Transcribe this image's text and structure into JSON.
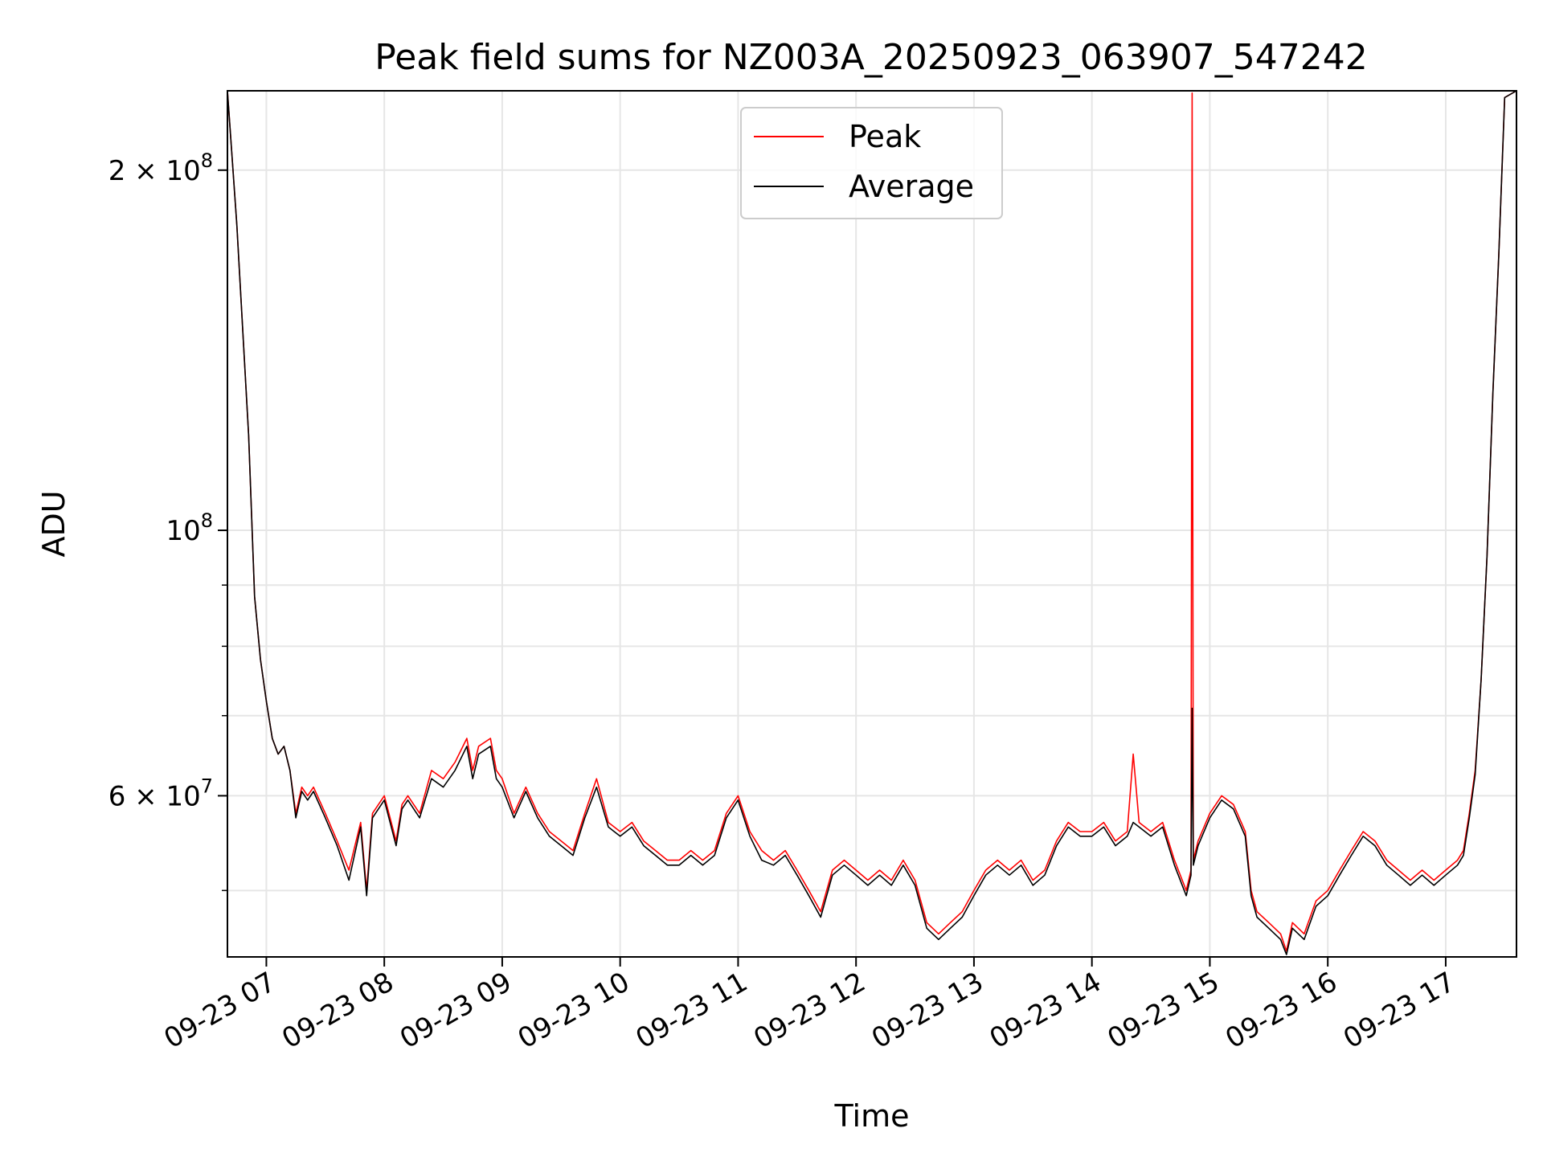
{
  "chart_data": {
    "type": "line",
    "title": "Peak field sums for NZ003A_20250923_063907_547242",
    "xlabel": "Time",
    "ylabel": "ADU",
    "yscale": "log",
    "ylim": [
      44000000,
      233000000
    ],
    "xlim_hours": [
      6.67,
      17.6
    ],
    "grid": true,
    "legend_position": "upper-center",
    "x_ticks": [
      {
        "hour": 7,
        "label": "09-23 07"
      },
      {
        "hour": 8,
        "label": "09-23 08"
      },
      {
        "hour": 9,
        "label": "09-23 09"
      },
      {
        "hour": 10,
        "label": "09-23 10"
      },
      {
        "hour": 11,
        "label": "09-23 11"
      },
      {
        "hour": 12,
        "label": "09-23 12"
      },
      {
        "hour": 13,
        "label": "09-23 13"
      },
      {
        "hour": 14,
        "label": "09-23 14"
      },
      {
        "hour": 15,
        "label": "09-23 15"
      },
      {
        "hour": 16,
        "label": "09-23 16"
      },
      {
        "hour": 17,
        "label": "09-23 17"
      }
    ],
    "y_major_ticks": [
      {
        "value": 100000000,
        "base": "10",
        "exp": "8",
        "prefix": ""
      },
      {
        "value": 60000000,
        "base": "6 × 10",
        "exp": "7",
        "prefix": ""
      },
      {
        "value": 200000000,
        "base": "2 × 10",
        "exp": "8",
        "prefix": ""
      }
    ],
    "y_minor_ticks": [
      50000000,
      70000000,
      80000000,
      90000000
    ],
    "series": [
      {
        "name": "Peak",
        "color": "#ff0000",
        "x_hours": [
          6.67,
          6.75,
          6.85,
          6.9,
          6.95,
          7.0,
          7.05,
          7.1,
          7.15,
          7.2,
          7.25,
          7.3,
          7.35,
          7.4,
          7.5,
          7.6,
          7.7,
          7.8,
          7.85,
          7.9,
          8.0,
          8.1,
          8.15,
          8.2,
          8.3,
          8.4,
          8.5,
          8.6,
          8.7,
          8.75,
          8.8,
          8.9,
          8.95,
          9.0,
          9.1,
          9.2,
          9.3,
          9.4,
          9.5,
          9.6,
          9.7,
          9.8,
          9.9,
          10.0,
          10.1,
          10.2,
          10.3,
          10.4,
          10.5,
          10.6,
          10.7,
          10.8,
          10.9,
          11.0,
          11.1,
          11.2,
          11.3,
          11.4,
          11.5,
          11.6,
          11.7,
          11.8,
          11.9,
          12.0,
          12.1,
          12.2,
          12.3,
          12.4,
          12.5,
          12.6,
          12.7,
          12.8,
          12.9,
          13.0,
          13.1,
          13.2,
          13.3,
          13.4,
          13.5,
          13.6,
          13.7,
          13.8,
          13.9,
          14.0,
          14.1,
          14.2,
          14.3,
          14.35,
          14.4,
          14.5,
          14.6,
          14.7,
          14.8,
          14.84,
          14.85,
          14.86,
          14.9,
          15.0,
          15.1,
          15.2,
          15.3,
          15.35,
          15.4,
          15.5,
          15.6,
          15.65,
          15.7,
          15.8,
          15.9,
          16.0,
          16.1,
          16.2,
          16.3,
          16.4,
          16.5,
          16.6,
          16.7,
          16.8,
          16.9,
          17.0,
          17.1,
          17.15,
          17.2,
          17.25,
          17.3,
          17.35,
          17.4,
          17.45,
          17.5,
          17.6
        ],
        "values": [
          233000000,
          180000000,
          120000000,
          88000000,
          78000000,
          72000000,
          67000000,
          65000000,
          66000000,
          63000000,
          58000000,
          61000000,
          60000000,
          61000000,
          58000000,
          55000000,
          52000000,
          57000000,
          50000000,
          58000000,
          60000000,
          55000000,
          59000000,
          60000000,
          58000000,
          63000000,
          62000000,
          64000000,
          67000000,
          63000000,
          66000000,
          67000000,
          63000000,
          62000000,
          58000000,
          61000000,
          58000000,
          56000000,
          55000000,
          54000000,
          58000000,
          62000000,
          57000000,
          56000000,
          57000000,
          55000000,
          54000000,
          53000000,
          53000000,
          54000000,
          53000000,
          54000000,
          58000000,
          60000000,
          56000000,
          54000000,
          53000000,
          54000000,
          52000000,
          50000000,
          48000000,
          52000000,
          53000000,
          52000000,
          51000000,
          52000000,
          51000000,
          53000000,
          51000000,
          47000000,
          46000000,
          47000000,
          48000000,
          50000000,
          52000000,
          53000000,
          52000000,
          53000000,
          51000000,
          52000000,
          55000000,
          57000000,
          56000000,
          56000000,
          57000000,
          55000000,
          56000000,
          65000000,
          57000000,
          56000000,
          57000000,
          53000000,
          50000000,
          52000000,
          232000000,
          53000000,
          55000000,
          58000000,
          60000000,
          59000000,
          56000000,
          50000000,
          48000000,
          47000000,
          46000000,
          44500000,
          47000000,
          46000000,
          49000000,
          50000000,
          52000000,
          54000000,
          56000000,
          55000000,
          53000000,
          52000000,
          51000000,
          52000000,
          51000000,
          52000000,
          53000000,
          54000000,
          58000000,
          63000000,
          75000000,
          95000000,
          130000000,
          170000000,
          230000000,
          233000000
        ]
      },
      {
        "name": "Average",
        "color": "#000000",
        "x_hours": [
          6.67,
          6.75,
          6.85,
          6.9,
          6.95,
          7.0,
          7.05,
          7.1,
          7.15,
          7.2,
          7.25,
          7.3,
          7.35,
          7.4,
          7.5,
          7.6,
          7.7,
          7.8,
          7.85,
          7.9,
          8.0,
          8.1,
          8.15,
          8.2,
          8.3,
          8.4,
          8.5,
          8.6,
          8.7,
          8.75,
          8.8,
          8.9,
          8.95,
          9.0,
          9.1,
          9.2,
          9.3,
          9.4,
          9.5,
          9.6,
          9.7,
          9.8,
          9.9,
          10.0,
          10.1,
          10.2,
          10.3,
          10.4,
          10.5,
          10.6,
          10.7,
          10.8,
          10.9,
          11.0,
          11.1,
          11.2,
          11.3,
          11.4,
          11.5,
          11.6,
          11.7,
          11.8,
          11.9,
          12.0,
          12.1,
          12.2,
          12.3,
          12.4,
          12.5,
          12.6,
          12.7,
          12.8,
          12.9,
          13.0,
          13.1,
          13.2,
          13.3,
          13.4,
          13.5,
          13.6,
          13.7,
          13.8,
          13.9,
          14.0,
          14.1,
          14.2,
          14.3,
          14.35,
          14.4,
          14.5,
          14.6,
          14.7,
          14.8,
          14.84,
          14.85,
          14.86,
          14.9,
          15.0,
          15.1,
          15.2,
          15.3,
          15.35,
          15.4,
          15.5,
          15.6,
          15.65,
          15.7,
          15.8,
          15.9,
          16.0,
          16.1,
          16.2,
          16.3,
          16.4,
          16.5,
          16.6,
          16.7,
          16.8,
          16.9,
          17.0,
          17.1,
          17.15,
          17.2,
          17.25,
          17.3,
          17.35,
          17.4,
          17.45,
          17.5,
          17.6
        ],
        "values": [
          233000000,
          180000000,
          120000000,
          88000000,
          78000000,
          72000000,
          67000000,
          65000000,
          66000000,
          63000000,
          57500000,
          60500000,
          59500000,
          60500000,
          57500000,
          54500000,
          51000000,
          56500000,
          49500000,
          57500000,
          59500000,
          54500000,
          58500000,
          59500000,
          57500000,
          62000000,
          61000000,
          63000000,
          66000000,
          62000000,
          65000000,
          66000000,
          62000000,
          61000000,
          57500000,
          60500000,
          57500000,
          55500000,
          54500000,
          53500000,
          57500000,
          61000000,
          56500000,
          55500000,
          56500000,
          54500000,
          53500000,
          52500000,
          52500000,
          53500000,
          52500000,
          53500000,
          57500000,
          59500000,
          55500000,
          53000000,
          52500000,
          53500000,
          51500000,
          49500000,
          47500000,
          51500000,
          52500000,
          51500000,
          50500000,
          51500000,
          50500000,
          52500000,
          50500000,
          46500000,
          45500000,
          46500000,
          47500000,
          49500000,
          51500000,
          52500000,
          51500000,
          52500000,
          50500000,
          51500000,
          54500000,
          56500000,
          55500000,
          55500000,
          56500000,
          54500000,
          55500000,
          57000000,
          56500000,
          55500000,
          56500000,
          52500000,
          49500000,
          51500000,
          71000000,
          52500000,
          54500000,
          57500000,
          59500000,
          58500000,
          55500000,
          49500000,
          47500000,
          46500000,
          45500000,
          44200000,
          46500000,
          45500000,
          48500000,
          49500000,
          51500000,
          53500000,
          55500000,
          54500000,
          52500000,
          51500000,
          50500000,
          51500000,
          50500000,
          51500000,
          52500000,
          53500000,
          57500000,
          62500000,
          75000000,
          95000000,
          130000000,
          170000000,
          230000000,
          233000000
        ]
      }
    ]
  }
}
